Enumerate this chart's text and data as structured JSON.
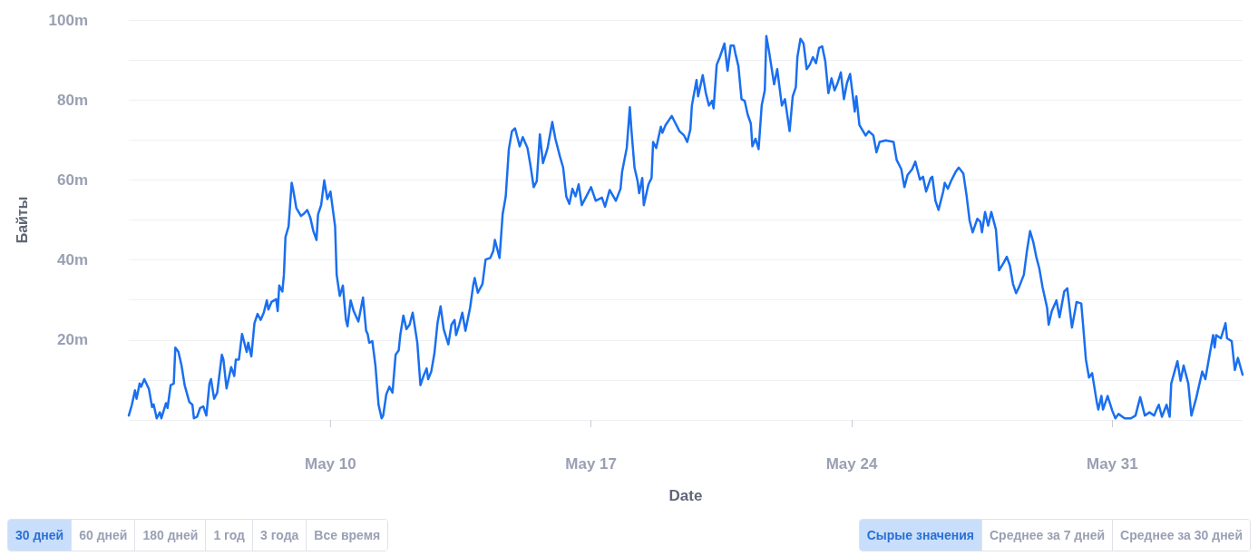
{
  "chart_data": {
    "type": "line",
    "xlabel": "Date",
    "ylabel": "Байты",
    "grid": "y",
    "marker": "none",
    "line_style": "solid",
    "xlim": [
      "--05-04T14:00",
      "--06-03T12:00"
    ],
    "xticks": [
      {
        "value": "--05-10",
        "label": "May 10"
      },
      {
        "value": "--05-17",
        "label": "May 17"
      },
      {
        "value": "--05-24",
        "label": "May 24"
      },
      {
        "value": "--05-31",
        "label": "May 31"
      }
    ],
    "ylim": [
      0,
      100
    ],
    "yticks": [
      {
        "value": 0,
        "label": null
      },
      {
        "value": 10,
        "label": null
      },
      {
        "value": 20,
        "label": "20m"
      },
      {
        "value": 30,
        "label": null
      },
      {
        "value": 40,
        "label": "40m"
      },
      {
        "value": 50,
        "label": null
      },
      {
        "value": 60,
        "label": "60m"
      },
      {
        "value": 70,
        "label": null
      },
      {
        "value": 80,
        "label": "80m"
      },
      {
        "value": 90,
        "label": null
      },
      {
        "value": 100,
        "label": "100m"
      }
    ],
    "annotations": [
      "30 дней",
      "60 дней",
      "180 дней",
      "1 год",
      "3 года",
      "Все время",
      "Сырые значения",
      "Среднее за 7 дней",
      "Среднее за 30 дней"
    ],
    "series": [
      {
        "color": "#1a6ff0",
        "x": [
          "--05-04T14:00",
          "--05-04T16:00",
          "--05-04T18:00",
          "--05-04T19:00",
          "--05-04T21:00",
          "--05-04T22:00",
          "--05-05T00:00",
          "--05-05T03:00",
          "--05-05T05:00",
          "--05-05T06:00",
          "--05-05T08:00",
          "--05-05T10:00",
          "--05-05T11:00",
          "--05-05T14:00",
          "--05-05T15:00",
          "--05-05T17:00",
          "--05-05T19:00",
          "--05-05T20:00",
          "--05-05T22:00",
          "--05-06T00:00",
          "--05-06T02:00",
          "--05-06T05:00",
          "--05-06T07:00",
          "--05-06T08:00",
          "--05-06T10:00",
          "--05-06T12:00",
          "--05-06T14:00",
          "--05-06T16:00",
          "--05-06T18:00",
          "--05-06T19:00",
          "--05-06T21:00",
          "--05-06T23:00",
          "--05-07T02:00",
          "--05-07T03:00",
          "--05-07T05:00",
          "--05-07T08:00",
          "--05-07T10:00",
          "--05-07T11:00",
          "--05-07T13:00",
          "--05-07T15:00",
          "--05-07T18:00",
          "--05-07T19:00",
          "--05-07T21:00",
          "--05-07T23:00",
          "--05-08T01:00",
          "--05-08T03:00",
          "--05-08T05:00",
          "--05-08T07:00",
          "--05-08T08:00",
          "--05-08T10:00",
          "--05-08T13:00",
          "--05-08T14:00",
          "--05-08T15:00",
          "--05-08T17:00",
          "--05-08T18:00",
          "--05-08T19:00",
          "--05-08T21:00",
          "--05-08T23:00",
          "--05-09T00:00",
          "--05-09T02:00",
          "--05-09T05:00",
          "--05-09T07:00",
          "--05-09T09:00",
          "--05-09T11:00",
          "--05-09T13:00",
          "--05-09T15:00",
          "--05-09T16:00",
          "--05-09T18:00",
          "--05-09T20:00",
          "--05-09T22:00",
          "--05-10T00:00",
          "--05-10T03:00",
          "--05-10T04:00",
          "--05-10T06:00",
          "--05-10T08:00",
          "--05-10T10:00",
          "--05-10T11:00",
          "--05-10T13:00",
          "--05-10T15:00",
          "--05-10T18:00",
          "--05-10T21:00",
          "--05-10T23:00",
          "--05-11T00:00",
          "--05-11T01:00",
          "--05-11T03:00",
          "--05-11T05:00",
          "--05-11T07:00",
          "--05-11T09:00",
          "--05-11T10:00",
          "--05-11T12:00",
          "--05-11T14:00",
          "--05-11T16:00",
          "--05-11T18:00",
          "--05-11T20:00",
          "--05-11T21:00",
          "--05-11T23:00",
          "--05-12T01:00",
          "--05-12T03:00",
          "--05-12T05:00",
          "--05-12T08:00",
          "--05-12T10:00",
          "--05-12T12:00",
          "--05-12T14:00",
          "--05-12T15:00",
          "--05-12T17:00",
          "--05-12T19:00",
          "--05-12T21:00",
          "--05-12T23:00",
          "--05-13T01:00",
          "--05-13T04:00",
          "--05-13T06:00",
          "--05-13T08:00",
          "--05-13T09:00",
          "--05-13T11:00",
          "--05-13T13:00",
          "--05-13T15:00",
          "--05-13T18:00",
          "--05-13T20:00",
          "--05-13T21:00",
          "--05-13T23:00",
          "--05-14T02:00",
          "--05-14T04:00",
          "--05-14T07:00",
          "--05-14T09:00",
          "--05-14T10:00",
          "--05-14T13:00",
          "--05-14T15:00",
          "--05-14T17:00",
          "--05-14T19:00",
          "--05-14T21:00",
          "--05-14T23:00",
          "--05-15T02:00",
          "--05-15T04:00",
          "--05-15T07:00",
          "--05-15T09:00",
          "--05-15T11:00",
          "--05-15T13:00",
          "--05-15T15:00",
          "--05-15T17:00",
          "--05-15T20:00",
          "--05-15T23:00",
          "--05-16T01:00",
          "--05-16T04:00",
          "--05-16T06:00",
          "--05-16T08:00",
          "--05-16T10:00",
          "--05-16T12:00",
          "--05-16T14:00",
          "--05-16T16:00",
          "--05-16T18:00",
          "--05-16T20:00",
          "--05-17T00:00",
          "--05-17T03:00",
          "--05-17T05:00",
          "--05-17T07:00",
          "--05-17T09:00",
          "--05-17T12:00",
          "--05-17T16:00",
          "--05-17T19:00",
          "--05-17T20:00",
          "--05-17T23:00",
          "--05-18T01:00",
          "--05-18T02:00",
          "--05-18T04:00",
          "--05-18T06:00",
          "--05-18T07:00",
          "--05-18T09:00",
          "--05-18T10:00",
          "--05-18T13:00",
          "--05-18T15:00",
          "--05-18T16:00",
          "--05-18T18:00",
          "--05-18T21:00",
          "--05-18T22:00",
          "--05-19T00:00",
          "--05-19T04:00",
          "--05-19T06:00",
          "--05-19T09:00",
          "--05-19T12:00",
          "--05-19T14:00",
          "--05-19T16:00",
          "--05-19T17:00",
          "--05-19T20:00",
          "--05-19T21:00",
          "--05-20T00:00",
          "--05-20T02:00",
          "--05-20T04:00",
          "--05-20T06:00",
          "--05-20T07:00",
          "--05-20T09:00",
          "--05-20T11:00",
          "--05-20T14:00",
          "--05-20T16:00",
          "--05-20T18:00",
          "--05-20T20:00",
          "--05-20T21:00",
          "--05-20T23:00",
          "--05-21T01:00",
          "--05-21T03:00",
          "--05-21T05:00",
          "--05-21T07:00",
          "--05-21T08:00",
          "--05-21T10:00",
          "--05-21T12:00",
          "--05-21T14:00",
          "--05-21T16:00",
          "--05-21T17:00",
          "--05-21T19:00",
          "--05-21T22:00",
          "--05-22T00:00",
          "--05-22T03:00",
          "--05-22T05:00",
          "--05-22T08:00",
          "--05-22T10:00",
          "--05-22T12:00",
          "--05-22T13:00",
          "--05-22T15:00",
          "--05-22T17:00",
          "--05-22T19:00",
          "--05-22T21:00",
          "--05-22T23:00",
          "--05-23T01:00",
          "--05-23T03:00",
          "--05-23T05:00",
          "--05-23T07:00",
          "--05-23T09:00",
          "--05-23T11:00",
          "--05-23T13:00",
          "--05-23T15:00",
          "--05-23T17:00",
          "--05-23T19:00",
          "--05-23T21:00",
          "--05-23T23:00",
          "--05-24T02:00",
          "--05-24T03:00",
          "--05-24T05:00",
          "--05-24T09:00",
          "--05-24T11:00",
          "--05-24T14:00",
          "--05-24T16:00",
          "--05-24T18:00",
          "--05-24T22:00",
          "--05-25T03:00",
          "--05-25T05:00",
          "--05-25T08:00",
          "--05-25T10:00",
          "--05-25T12:00",
          "--05-25T15:00",
          "--05-25T17:00",
          "--05-25T20:00",
          "--05-25T22:00",
          "--05-26T00:00",
          "--05-26T03:00",
          "--05-26T04:00",
          "--05-26T06:00",
          "--05-26T08:00",
          "--05-26T11:00",
          "--05-26T12:00",
          "--05-26T14:00",
          "--05-26T16:00",
          "--05-26T19:00",
          "--05-26T21:00",
          "--05-27T00:00",
          "--05-27T02:00",
          "--05-27T04:00",
          "--05-27T06:00",
          "--05-27T09:00",
          "--05-27T11:00",
          "--05-27T12:00",
          "--05-27T14:00",
          "--05-27T16:00",
          "--05-27T18:00",
          "--05-27T21:00",
          "--05-27T23:00",
          "--05-28T02:00",
          "--05-28T04:00",
          "--05-28T06:00",
          "--05-28T08:00",
          "--05-28T10:00",
          "--05-28T12:00",
          "--05-28T15:00",
          "--05-28T17:00",
          "--05-28T19:00",
          "--05-28T21:00",
          "--05-28T23:00",
          "--05-29T01:00",
          "--05-29T03:00",
          "--05-29T06:00",
          "--05-29T07:00",
          "--05-29T09:00",
          "--05-29T12:00",
          "--05-29T14:00",
          "--05-29T17:00",
          "--05-29T19:00",
          "--05-29T22:00",
          "--05-30T01:00",
          "--05-30T04:00",
          "--05-30T05:00",
          "--05-30T07:00",
          "--05-30T09:00",
          "--05-30T11:00",
          "--05-30T14:00",
          "--05-30T15:00",
          "--05-30T17:00",
          "--05-30T18:00",
          "--05-30T21:00",
          "--05-31T00:00",
          "--05-31T02:00",
          "--05-31T04:00",
          "--05-31T08:00",
          "--05-31T12:00",
          "--05-31T15:00",
          "--05-31T18:00",
          "--05-31T21:00",
          "--06-01T00:00",
          "--06-01T03:00",
          "--06-01T05:00",
          "--06-01T06:00",
          "--06-01T08:00",
          "--06-01T11:00",
          "--06-01T13:00",
          "--06-01T14:00",
          "--06-01T18:00",
          "--06-01T20:00",
          "--06-01T22:00",
          "--06-02T01:00",
          "--06-02T03:00",
          "--06-02T06:00",
          "--06-02T08:00",
          "--06-02T10:00",
          "--06-02T12:00",
          "--06-02T14:00",
          "--06-02T17:00",
          "--06-02T18:00",
          "--06-02T19:00",
          "--06-02T22:00",
          "--06-03T01:00",
          "--06-03T02:00",
          "--06-03T05:00",
          "--06-03T07:00",
          "--06-03T09:00",
          "--06-03T12:00"
        ],
        "values": [
          1.1,
          3.8,
          7.4,
          5.3,
          9.1,
          8.3,
          10.2,
          7.7,
          3.2,
          3.9,
          0.4,
          1.9,
          0.4,
          4.2,
          3.0,
          8.7,
          9.1,
          18.1,
          17.0,
          13.6,
          8.7,
          4.5,
          3.8,
          0.4,
          0.8,
          3.0,
          3.4,
          1.1,
          9.1,
          10.2,
          5.3,
          6.8,
          16.3,
          15.1,
          7.9,
          13.2,
          11.0,
          15.1,
          15.1,
          21.5,
          17.0,
          19.3,
          15.9,
          24.2,
          26.5,
          25.0,
          26.8,
          29.9,
          27.6,
          29.5,
          30.2,
          27.2,
          33.6,
          32.1,
          36.3,
          45.7,
          48.4,
          59.3,
          57.5,
          53.0,
          51.0,
          51.6,
          52.5,
          50.6,
          47.2,
          45.0,
          51.4,
          53.7,
          59.9,
          55.2,
          57.1,
          48.4,
          36.3,
          31.0,
          33.6,
          25.0,
          23.4,
          29.9,
          27.2,
          24.6,
          30.6,
          22.3,
          21.5,
          19.3,
          19.7,
          13.6,
          3.8,
          0.4,
          1.1,
          6.4,
          8.3,
          6.8,
          16.3,
          17.4,
          21.2,
          26.1,
          22.7,
          23.8,
          26.8,
          19.3,
          8.7,
          11.0,
          12.9,
          10.2,
          12.1,
          16.6,
          24.2,
          28.4,
          22.7,
          18.9,
          23.8,
          25.0,
          21.2,
          23.8,
          26.8,
          22.3,
          28.0,
          33.6,
          35.5,
          31.8,
          34.0,
          40.1,
          40.5,
          42.3,
          45.0,
          40.5,
          51.4,
          55.9,
          67.7,
          72.2,
          72.9,
          68.4,
          70.7,
          68.0,
          63.5,
          58.2,
          59.7,
          71.4,
          64.2,
          68.0,
          74.5,
          70.3,
          65.8,
          63.1,
          55.9,
          54.0,
          57.8,
          55.9,
          58.9,
          53.7,
          55.2,
          58.2,
          54.8,
          55.2,
          55.6,
          53.3,
          57.5,
          54.8,
          57.8,
          62.0,
          68.0,
          78.2,
          72.6,
          63.1,
          59.7,
          56.7,
          60.5,
          53.7,
          58.9,
          60.5,
          69.5,
          68.0,
          73.3,
          71.8,
          73.7,
          76.0,
          74.5,
          72.2,
          71.1,
          69.5,
          72.6,
          78.6,
          85.0,
          80.9,
          86.2,
          81.7,
          78.6,
          79.8,
          77.9,
          88.8,
          90.7,
          94.1,
          87.3,
          93.6,
          93.6,
          91.7,
          88.4,
          80.2,
          79.8,
          76.3,
          74.1,
          68.4,
          70.3,
          67.7,
          78.6,
          82.4,
          96.0,
          91.5,
          83.9,
          87.7,
          78.6,
          80.2,
          72.2,
          80.9,
          83.2,
          90.7,
          95.3,
          94.1,
          87.7,
          88.8,
          90.7,
          89.2,
          93.0,
          93.4,
          89.6,
          81.7,
          85.4,
          82.4,
          84.3,
          86.9,
          80.2,
          84.3,
          86.5,
          77.1,
          80.9,
          73.7,
          71.1,
          72.2,
          71.1,
          66.9,
          69.5,
          69.9,
          69.5,
          65.0,
          62.7,
          58.2,
          61.2,
          62.7,
          64.6,
          60.1,
          60.8,
          57.1,
          60.5,
          60.8,
          54.8,
          52.5,
          57.1,
          59.3,
          57.8,
          59.7,
          62.0,
          63.1,
          61.6,
          56.3,
          49.9,
          46.9,
          50.3,
          49.5,
          46.9,
          52.0,
          48.6,
          52.0,
          47.6,
          37.4,
          39.3,
          40.8,
          38.6,
          34.0,
          31.7,
          33.3,
          36.3,
          42.3,
          47.2,
          44.6,
          40.8,
          37.8,
          33.3,
          28.0,
          23.8,
          27.2,
          29.9,
          25.7,
          32.1,
          32.9,
          23.1,
          29.5,
          29.1,
          24.6,
          15.1,
          10.6,
          11.7,
          4.5,
          2.6,
          6.0,
          2.6,
          6.0,
          2.3,
          0.4,
          1.5,
          0.4,
          0.4,
          1.1,
          5.7,
          1.1,
          1.9,
          1.1,
          3.0,
          3.8,
          0.8,
          3.8,
          0.8,
          9.1,
          14.7,
          9.8,
          13.6,
          9.1,
          1.1,
          5.3,
          8.7,
          12.1,
          10.2,
          14.7,
          21.2,
          18.1,
          21.2,
          20.4,
          24.2,
          20.4,
          19.7,
          12.5,
          15.5,
          11.3
        ]
      }
    ]
  }
}
